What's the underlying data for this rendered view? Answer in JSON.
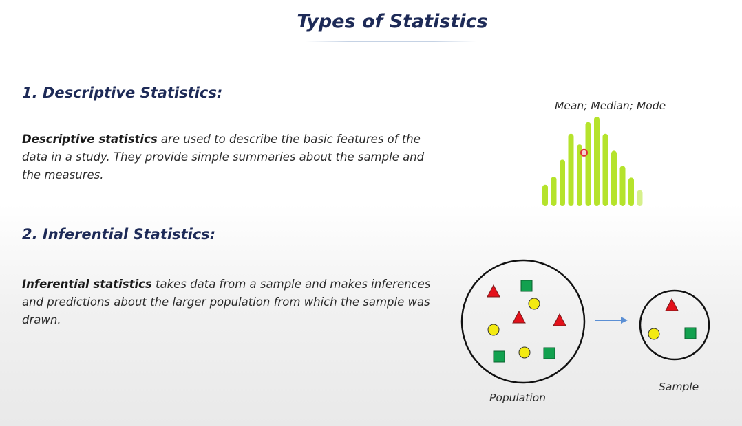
{
  "title": "Types of Statistics",
  "descriptive": {
    "heading": "1. Descriptive Statistics:",
    "term": "Descriptive statistics",
    "text": " are used to describe the basic features of the data in a study. They provide simple summaries about the sample and the measures."
  },
  "inferential": {
    "heading": "2. Inferential Statistics:",
    "term": "Inferential statistics",
    "text": " takes data from a sample and makes inferences and predictions about the larger population from which the sample was drawn."
  },
  "histogram": {
    "caption": "Mean; Median; Mode",
    "bar_color": "#b5e32c",
    "marker_color": "#e0303a",
    "levels": [
      0.24,
      0.33,
      0.52,
      0.81,
      0.69,
      0.94,
      1.0,
      0.81,
      0.62,
      0.45,
      0.32,
      0.18
    ]
  },
  "population_sample": {
    "population_label": "Population",
    "sample_label": "Sample",
    "colors": {
      "triangle": "#e3111b",
      "circle": "#f3ea12",
      "square": "#12a14f",
      "arrow": "#5b8fd4"
    }
  }
}
